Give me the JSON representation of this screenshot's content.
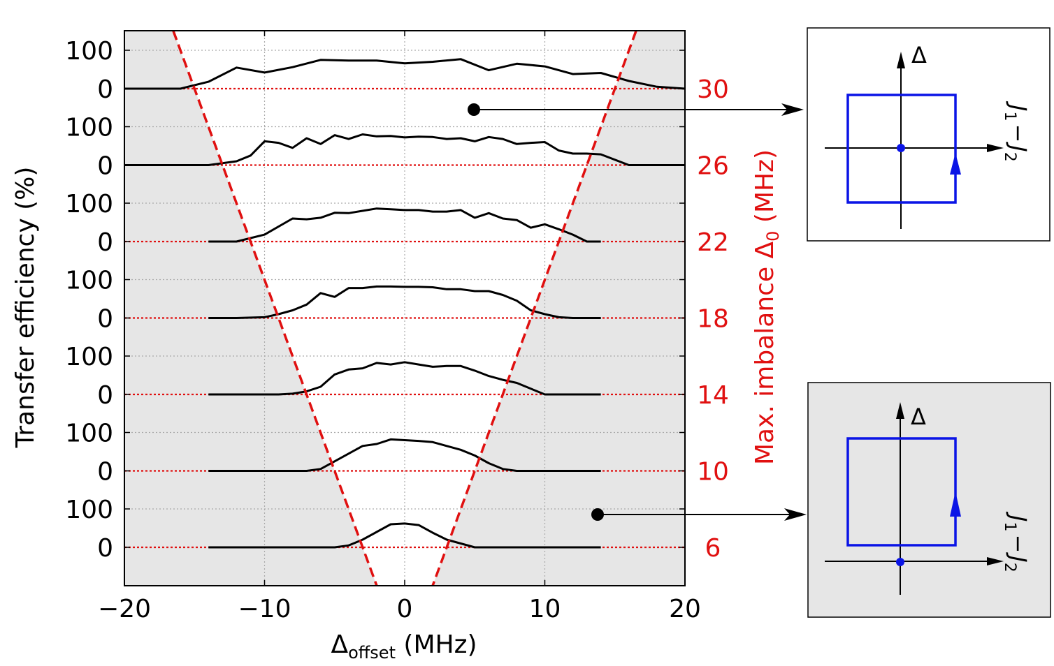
{
  "chart_data": {
    "type": "line",
    "xlabel": "Δ",
    "xlabel_sub": "offset",
    "xlabel_unit": " (MHz)",
    "ylabel": "Transfer efficiency (%)",
    "ylabel_right_main": "Max. imbalance Δ",
    "ylabel_right_sub": "0",
    "ylabel_right_unit": " (MHz)",
    "xlim": [
      -20,
      20
    ],
    "xticks": [
      -20,
      -10,
      0,
      10,
      20
    ],
    "xtick_labels": [
      "−20",
      "−10",
      "0",
      "10",
      "20"
    ],
    "series": [
      {
        "name": "Δ0 = 30",
        "delta0": 30,
        "label": "30",
        "x": [
          -20,
          -16,
          -14,
          -12,
          -10,
          -8,
          -6,
          -4,
          -2,
          0,
          2,
          4,
          6,
          8,
          10,
          12,
          14,
          16,
          18,
          20
        ],
        "y": [
          0,
          0,
          18,
          55,
          42,
          56,
          75,
          73,
          73,
          66,
          70,
          77,
          48,
          65,
          58,
          38,
          41,
          20,
          5,
          0
        ]
      },
      {
        "name": "Δ0 = 26",
        "delta0": 26,
        "label": "26",
        "x": [
          -20,
          -14,
          -12,
          -11,
          -10,
          -9,
          -8,
          -7,
          -6,
          -5,
          -4,
          -3,
          -2,
          -1,
          0,
          1,
          2,
          3,
          4,
          5,
          6,
          7,
          8,
          9,
          10,
          11,
          12,
          13,
          14,
          16,
          18,
          20
        ],
        "y": [
          0,
          0,
          10,
          25,
          62,
          58,
          45,
          70,
          55,
          78,
          68,
          80,
          75,
          76,
          72,
          74,
          73,
          68,
          70,
          62,
          73,
          68,
          55,
          58,
          60,
          38,
          30,
          30,
          28,
          0,
          0,
          0
        ]
      },
      {
        "name": "Δ0 = 22",
        "delta0": 22,
        "label": "22",
        "x": [
          -14,
          -12,
          -10,
          -8,
          -7,
          -6,
          -5,
          -4,
          -3,
          -2,
          -1,
          0,
          1,
          2,
          3,
          4,
          5,
          6,
          7,
          8,
          9,
          10,
          11,
          12,
          13,
          14
        ],
        "y": [
          0,
          0,
          18,
          60,
          58,
          62,
          75,
          74,
          80,
          86,
          84,
          82,
          82,
          78,
          78,
          82,
          62,
          74,
          60,
          56,
          36,
          45,
          32,
          18,
          0,
          0
        ]
      },
      {
        "name": "Δ0 = 18",
        "delta0": 18,
        "label": "18",
        "x": [
          -14,
          -12,
          -10,
          -9,
          -8,
          -7,
          -6,
          -5,
          -4,
          -3,
          -2,
          -1,
          0,
          1,
          2,
          3,
          4,
          5,
          6,
          7,
          8,
          9,
          10,
          11,
          12,
          14
        ],
        "y": [
          0,
          0,
          2,
          10,
          20,
          35,
          65,
          55,
          78,
          78,
          82,
          82,
          81,
          81,
          80,
          75,
          75,
          70,
          70,
          60,
          45,
          20,
          10,
          2,
          0,
          0
        ]
      },
      {
        "name": "Δ0 = 14",
        "delta0": 14,
        "label": "14",
        "x": [
          -14,
          -9,
          -8,
          -7,
          -6,
          -5,
          -4,
          -3,
          -2,
          -1,
          0,
          1,
          2,
          3,
          4,
          5,
          6,
          7,
          8,
          9,
          10,
          11,
          12,
          14
        ],
        "y": [
          0,
          0,
          2,
          8,
          20,
          52,
          65,
          68,
          82,
          78,
          84,
          78,
          72,
          74,
          74,
          62,
          48,
          38,
          30,
          15,
          0,
          0,
          0,
          0
        ]
      },
      {
        "name": "Δ0 = 10",
        "delta0": 10,
        "label": "10",
        "x": [
          -14,
          -7,
          -6,
          -5,
          -4,
          -3,
          -2,
          -1,
          0,
          1,
          2,
          3,
          4,
          5,
          6,
          7,
          8,
          9,
          10,
          12,
          14
        ],
        "y": [
          0,
          0,
          5,
          25,
          45,
          65,
          70,
          82,
          80,
          78,
          75,
          65,
          55,
          40,
          20,
          5,
          0,
          0,
          0,
          0,
          0
        ]
      },
      {
        "name": "Δ0 = 6",
        "delta0": 6,
        "label": "6",
        "x": [
          -14,
          -5,
          -4,
          -3,
          -2,
          -1,
          0,
          1,
          2,
          3,
          4,
          5,
          6,
          14
        ],
        "y": [
          0,
          0,
          5,
          20,
          40,
          60,
          62,
          58,
          38,
          20,
          10,
          0,
          0,
          0
        ]
      }
    ],
    "ytick_labels_left": [
      "0",
      "100"
    ],
    "shading": "gray outside |Δoffset| ≤ Δ0/2 boundary",
    "colors": {
      "curve": "#000000",
      "baseline": "#e01010",
      "shade": "#e6e6e6",
      "axis_right": "#e01010",
      "loop": "#0a14e6"
    },
    "insets": [
      {
        "axis_vertical": "Δ",
        "axis_horizontal_1": "J",
        "axis_horizontal_sub1": "1",
        "axis_horizontal_minus": "−",
        "axis_horizontal_2": "J",
        "axis_horizontal_sub2": "2",
        "background": "#ffffff",
        "points_to": "Δ0 = 30 (trace fully within white region)"
      },
      {
        "axis_vertical": "Δ",
        "axis_horizontal_1": "J",
        "axis_horizontal_sub1": "1",
        "axis_horizontal_minus": "−",
        "axis_horizontal_2": "J",
        "axis_horizontal_sub2": "2",
        "background": "#e6e6e6",
        "points_to": "shaded region"
      }
    ]
  }
}
